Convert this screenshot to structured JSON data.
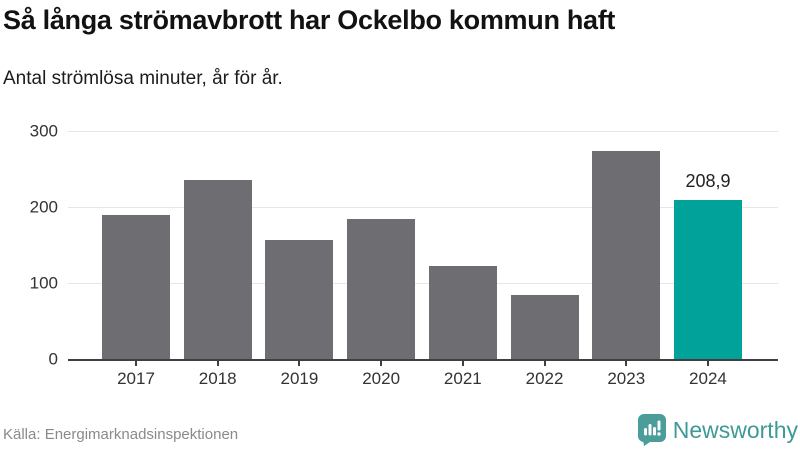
{
  "header": {
    "title": "Så långa strömavbrott har Ockelbo kommun haft",
    "subtitle": "Antal strömlösa minuter, år för år."
  },
  "chart_data": {
    "type": "bar",
    "title": "Så långa strömavbrott har Ockelbo kommun haft",
    "subtitle": "Antal strömlösa minuter, år för år.",
    "categories": [
      "2017",
      "2018",
      "2019",
      "2020",
      "2021",
      "2022",
      "2023",
      "2024"
    ],
    "values": [
      189,
      236,
      156,
      184,
      123,
      84,
      274,
      208.9
    ],
    "highlight_index": 7,
    "value_labels": {
      "7": "208,9"
    },
    "xlabel": "",
    "ylabel": "",
    "ylim": [
      0,
      300
    ],
    "y_ticks": [
      0,
      100,
      200,
      300
    ],
    "grid": true,
    "legend": "none",
    "bar_color": "#6e6e72",
    "highlight_color": "#00a29a",
    "axis_color": "#3e3e43",
    "gridline_color": "#e7e7e7"
  },
  "footer": {
    "source": "Källa: Energimarknadsinspektionen",
    "brand": "Newsworthy",
    "brand_color": "#3d9a96",
    "logo_color": "#4a9d99"
  }
}
